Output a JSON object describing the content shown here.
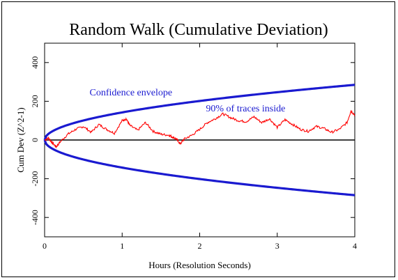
{
  "chart_data": {
    "type": "line",
    "title": "Random Walk (Cumulative Deviation)",
    "xlabel": "Hours (Resolution Seconds)",
    "ylabel": "Cum Dev (Z^2-1)",
    "xlim": [
      0,
      4
    ],
    "ylim": [
      -500,
      500
    ],
    "xticks": [
      0,
      1,
      2,
      3,
      4
    ],
    "yticks": [
      -400,
      -200,
      0,
      200,
      400
    ],
    "grid": false,
    "annotations": [
      {
        "text": "Confidence envelope",
        "x": 0.58,
        "y": 230
      },
      {
        "text": "90% of traces inside",
        "x": 2.08,
        "y": 148
      }
    ],
    "envelope": {
      "color": "#1a1ad0",
      "upper_at_x4": 285,
      "lower_at_x4": -285
    },
    "walk": {
      "color": "#ff0000",
      "x": [
        0,
        0.05,
        0.1,
        0.15,
        0.2,
        0.3,
        0.4,
        0.5,
        0.6,
        0.7,
        0.8,
        0.9,
        1.0,
        1.05,
        1.1,
        1.2,
        1.3,
        1.4,
        1.5,
        1.6,
        1.65,
        1.7,
        1.75,
        1.8,
        1.9,
        2.0,
        2.1,
        2.2,
        2.3,
        2.4,
        2.5,
        2.6,
        2.7,
        2.8,
        2.9,
        3.0,
        3.1,
        3.2,
        3.3,
        3.4,
        3.5,
        3.6,
        3.7,
        3.8,
        3.9,
        3.95,
        4.0
      ],
      "y": [
        0,
        10,
        -15,
        -35,
        -10,
        30,
        55,
        70,
        40,
        80,
        55,
        35,
        100,
        110,
        75,
        50,
        90,
        45,
        30,
        25,
        15,
        5,
        -20,
        5,
        25,
        55,
        90,
        110,
        135,
        115,
        100,
        95,
        120,
        90,
        110,
        65,
        105,
        80,
        55,
        45,
        70,
        60,
        40,
        55,
        90,
        150,
        130
      ]
    },
    "zero_line_color": "#000000"
  }
}
